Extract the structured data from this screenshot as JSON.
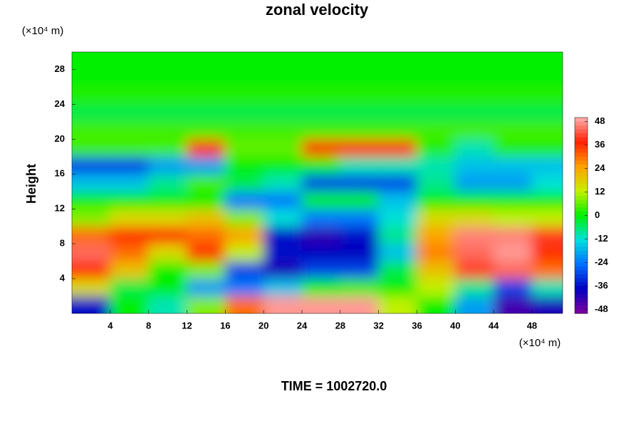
{
  "chart_data": {
    "type": "heatmap",
    "title": "zonal velocity",
    "y_label": "Height",
    "y_unit": "(×10⁴ m)",
    "x_unit": "(×10⁴ m)",
    "footer": "TIME = 1002720.0",
    "xlim": [
      0,
      51.2
    ],
    "ylim": [
      0,
      30
    ],
    "xticks": [
      4,
      8,
      12,
      16,
      20,
      24,
      28,
      32,
      36,
      40,
      44,
      48
    ],
    "yticks": [
      4,
      8,
      12,
      16,
      20,
      24,
      28
    ],
    "x": [
      2,
      6,
      10,
      14,
      18,
      22,
      26,
      30,
      34,
      38,
      42,
      46,
      50
    ],
    "y": [
      1,
      3,
      5,
      7,
      9,
      11,
      13,
      15,
      17,
      19,
      21,
      23,
      25,
      27,
      29
    ],
    "values": [
      [
        -36,
        0,
        -10,
        8,
        30,
        48,
        48,
        48,
        12,
        0,
        -20,
        -44,
        -40
      ],
      [
        16,
        -4,
        0,
        -20,
        -24,
        -16,
        0,
        4,
        0,
        12,
        -8,
        -30,
        -10
      ],
      [
        36,
        20,
        0,
        8,
        -30,
        -40,
        -30,
        -30,
        -4,
        20,
        40,
        44,
        30
      ],
      [
        44,
        30,
        16,
        36,
        12,
        -36,
        -38,
        -38,
        -16,
        28,
        44,
        48,
        36
      ],
      [
        30,
        36,
        36,
        30,
        24,
        -36,
        -42,
        -36,
        -8,
        24,
        46,
        46,
        40
      ],
      [
        8,
        16,
        16,
        20,
        8,
        -12,
        -24,
        -24,
        -12,
        16,
        16,
        12,
        12
      ],
      [
        0,
        0,
        0,
        0,
        -24,
        -24,
        0,
        0,
        -16,
        0,
        0,
        0,
        0
      ],
      [
        -16,
        -16,
        -8,
        4,
        -4,
        -10,
        -30,
        -30,
        -30,
        -8,
        -20,
        -20,
        -12
      ],
      [
        -30,
        -30,
        -20,
        -20,
        0,
        0,
        0,
        -10,
        -10,
        -10,
        -16,
        -16,
        -16
      ],
      [
        4,
        4,
        4,
        36,
        6,
        6,
        36,
        36,
        36,
        2,
        -10,
        2,
        2
      ],
      [
        4,
        4,
        4,
        4,
        4,
        4,
        4,
        4,
        4,
        4,
        4,
        4,
        4
      ],
      [
        -4,
        -4,
        -4,
        -4,
        -4,
        -4,
        -4,
        -4,
        -4,
        -4,
        -4,
        -4,
        -4
      ],
      [
        2,
        2,
        2,
        2,
        2,
        2,
        2,
        2,
        2,
        2,
        2,
        2,
        2
      ],
      [
        0,
        0,
        0,
        0,
        0,
        0,
        0,
        0,
        0,
        0,
        0,
        0,
        0
      ],
      [
        0,
        0,
        0,
        0,
        0,
        0,
        0,
        0,
        0,
        0,
        0,
        0,
        0
      ]
    ],
    "clim": [
      -50,
      50
    ],
    "cticks": [
      -48,
      -36,
      -24,
      -12,
      0,
      12,
      24,
      36,
      48
    ],
    "colormap": [
      "#8000a0",
      "#0000c0",
      "#0070ff",
      "#00e0e0",
      "#00f000",
      "#c8f000",
      "#ffa000",
      "#ff2000",
      "#ffb0b0"
    ]
  }
}
